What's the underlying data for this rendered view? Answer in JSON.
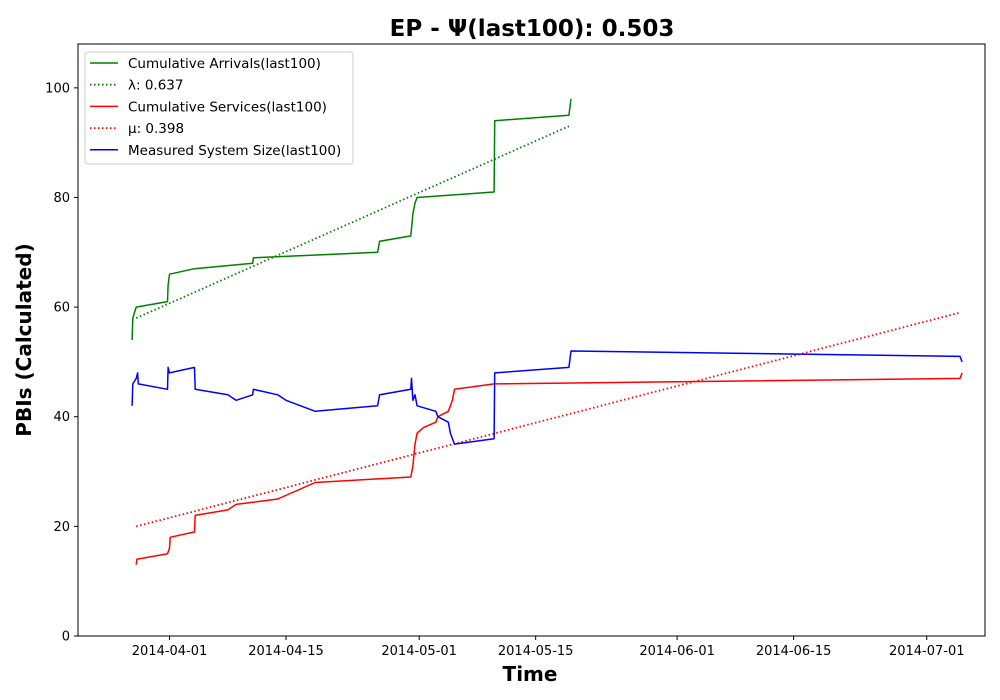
{
  "chart_data": {
    "type": "line",
    "title": "EP -  Ψ(last100): 0.503",
    "xlabel": "Time",
    "ylabel": "PBIs (Calculated)",
    "xlim": [
      "2014-03-21",
      "2014-07-08"
    ],
    "ylim": [
      0,
      108
    ],
    "x_ticks": [
      "2014-04-01",
      "2014-04-15",
      "2014-05-01",
      "2014-05-15",
      "2014-06-01",
      "2014-06-15",
      "2014-07-01"
    ],
    "y_ticks": [
      0,
      20,
      40,
      60,
      80,
      100
    ],
    "grid": false,
    "legend_position": "top-left",
    "colors": {
      "green": "#008000",
      "red": "#ff0000",
      "blue": "#0000ff"
    },
    "series": [
      {
        "name": "Cumulative Arrivals(last100)",
        "color": "#008000",
        "style": "solid",
        "points": [
          [
            "2014-03-27 12:00",
            54
          ],
          [
            "2014-03-27 14:00",
            58
          ],
          [
            "2014-03-28",
            60
          ],
          [
            "2014-03-31 18:00",
            61
          ],
          [
            "2014-03-31 20:00",
            64
          ],
          [
            "2014-04-01",
            66
          ],
          [
            "2014-04-04",
            67
          ],
          [
            "2014-04-11",
            68
          ],
          [
            "2014-04-11 02:00",
            69
          ],
          [
            "2014-04-26",
            70
          ],
          [
            "2014-04-26 06:00",
            72
          ],
          [
            "2014-04-30",
            73
          ],
          [
            "2014-04-30 06:00",
            77
          ],
          [
            "2014-04-30 12:00",
            79
          ],
          [
            "2014-04-30 18:00",
            80
          ],
          [
            "2014-05-10",
            81
          ],
          [
            "2014-05-10 02:00",
            94
          ],
          [
            "2014-05-19",
            95
          ],
          [
            "2014-05-19 06:00",
            98
          ]
        ]
      },
      {
        "name": "λ: 0.637",
        "color": "#008000",
        "style": "dotted",
        "points": [
          [
            "2014-03-28",
            58
          ],
          [
            "2014-05-19",
            93
          ]
        ]
      },
      {
        "name": "Cumulative Services(last100)",
        "color": "#ff0000",
        "style": "solid",
        "points": [
          [
            "2014-03-28",
            13
          ],
          [
            "2014-03-28 02:00",
            14
          ],
          [
            "2014-03-31 18:00",
            15
          ],
          [
            "2014-04-01",
            16
          ],
          [
            "2014-04-01 02:00",
            18
          ],
          [
            "2014-04-04",
            19
          ],
          [
            "2014-04-04 02:00",
            22
          ],
          [
            "2014-04-08",
            23
          ],
          [
            "2014-04-09",
            24
          ],
          [
            "2014-04-14",
            25
          ],
          [
            "2014-04-15 12:00",
            26
          ],
          [
            "2014-04-18 12:00",
            28
          ],
          [
            "2014-04-30",
            29
          ],
          [
            "2014-04-30 06:00",
            31
          ],
          [
            "2014-04-30 12:00",
            35
          ],
          [
            "2014-04-30 18:00",
            37
          ],
          [
            "2014-05-01 12:00",
            38
          ],
          [
            "2014-05-03",
            39
          ],
          [
            "2014-05-03 06:00",
            40
          ],
          [
            "2014-05-04 12:00",
            41
          ],
          [
            "2014-05-04 18:00",
            42
          ],
          [
            "2014-05-05",
            43
          ],
          [
            "2014-05-05 06:00",
            45
          ],
          [
            "2014-05-10",
            46
          ],
          [
            "2014-07-05",
            47
          ],
          [
            "2014-07-05 06:00",
            48
          ]
        ]
      },
      {
        "name": "μ: 0.398",
        "color": "#ff0000",
        "style": "dotted",
        "points": [
          [
            "2014-03-28",
            20
          ],
          [
            "2014-07-05",
            59
          ]
        ]
      },
      {
        "name": "Measured System Size(last100)",
        "color": "#0000ff",
        "style": "solid",
        "points": [
          [
            "2014-03-27 12:00",
            42
          ],
          [
            "2014-03-27 14:00",
            46
          ],
          [
            "2014-03-28",
            47
          ],
          [
            "2014-03-28 04:00",
            48
          ],
          [
            "2014-03-28 06:00",
            46
          ],
          [
            "2014-03-31 18:00",
            45
          ],
          [
            "2014-03-31 20:00",
            49
          ],
          [
            "2014-04-01",
            48
          ],
          [
            "2014-04-04",
            49
          ],
          [
            "2014-04-04 02:00",
            45
          ],
          [
            "2014-04-08",
            44
          ],
          [
            "2014-04-09",
            43
          ],
          [
            "2014-04-11",
            44
          ],
          [
            "2014-04-11 02:00",
            45
          ],
          [
            "2014-04-14",
            44
          ],
          [
            "2014-04-15",
            43
          ],
          [
            "2014-04-18 12:00",
            41
          ],
          [
            "2014-04-26",
            42
          ],
          [
            "2014-04-26 06:00",
            44
          ],
          [
            "2014-04-30",
            45
          ],
          [
            "2014-04-30 02:00",
            47
          ],
          [
            "2014-04-30 06:00",
            43
          ],
          [
            "2014-04-30 12:00",
            44
          ],
          [
            "2014-04-30 18:00",
            42
          ],
          [
            "2014-05-03",
            41
          ],
          [
            "2014-05-03 06:00",
            40
          ],
          [
            "2014-05-04 12:00",
            39
          ],
          [
            "2014-05-04 18:00",
            37
          ],
          [
            "2014-05-05",
            36
          ],
          [
            "2014-05-05 06:00",
            35
          ],
          [
            "2014-05-10",
            36
          ],
          [
            "2014-05-10 02:00",
            48
          ],
          [
            "2014-05-19",
            49
          ],
          [
            "2014-05-19 06:00",
            52
          ],
          [
            "2014-07-05",
            51
          ],
          [
            "2014-07-05 06:00",
            50
          ]
        ]
      }
    ]
  }
}
